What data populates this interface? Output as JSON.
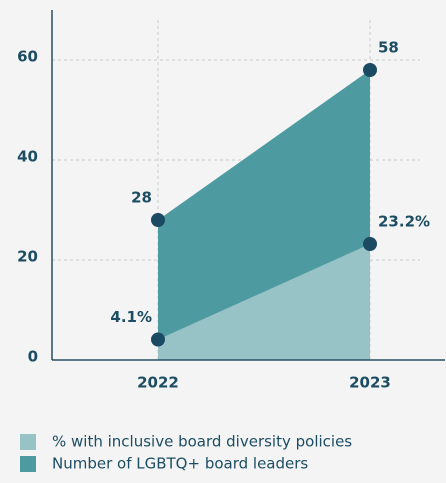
{
  "chart_data": {
    "type": "area",
    "categories": [
      "2022",
      "2023"
    ],
    "series": [
      {
        "name": "% with inclusive board diversity policies",
        "color": "#97c2c6",
        "values": [
          4.1,
          23.2
        ],
        "value_labels": [
          "4.1%",
          "23.2%"
        ]
      },
      {
        "name": "Number of LGBTQ+ board leaders",
        "color": "#4d9aa1",
        "values": [
          28,
          58
        ]
      }
    ],
    "marker_color": "#1b4a63",
    "ylim": [
      0,
      70
    ],
    "yticks": [
      0,
      20,
      40,
      60
    ],
    "grid": true,
    "legend": "bottom"
  }
}
